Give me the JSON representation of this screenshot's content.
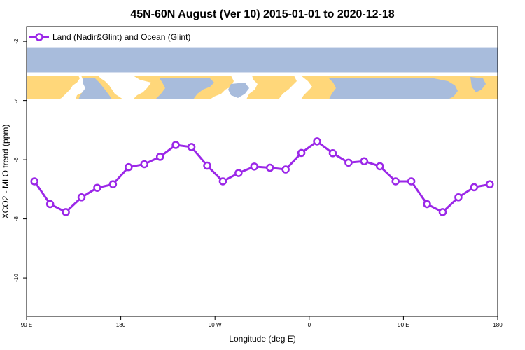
{
  "chart_data": {
    "type": "line",
    "title": "45N-60N August (Ver 10)   2015-01-01 to 2020-12-18",
    "xlabel": "Longitude (deg E)",
    "ylabel": "XCO2 - MLO trend (ppm)",
    "xlim": [
      90,
      450
    ],
    "ylim": [
      -11.3,
      -1.5
    ],
    "x_ticks": [
      {
        "value": 90,
        "label": "90 E"
      },
      {
        "value": 162,
        "label": "180"
      },
      {
        "value": 234,
        "label": "90 W"
      },
      {
        "value": 306,
        "label": "0"
      },
      {
        "value": 378,
        "label": "90 E"
      },
      {
        "value": 450,
        "label": "180"
      }
    ],
    "y_ticks": [
      {
        "value": -2,
        "label": "-2"
      },
      {
        "value": -4,
        "label": "-4"
      },
      {
        "value": -6,
        "label": "-6"
      },
      {
        "value": -8,
        "label": "-8"
      },
      {
        "value": -10,
        "label": "-10"
      }
    ],
    "legend_position": "top-left",
    "series": [
      {
        "name": "Land (Nadir&Glint) and Ocean (Glint)",
        "color": "#9b27e8",
        "x": [
          96,
          108,
          120,
          132,
          144,
          156,
          168,
          180,
          192,
          204,
          216,
          228,
          240,
          252,
          264,
          276,
          288,
          300,
          312,
          324,
          336,
          348,
          360,
          372,
          384,
          396,
          408,
          420,
          432,
          444
        ],
        "y": [
          -6.73,
          -7.5,
          -7.77,
          -7.27,
          -6.95,
          -6.83,
          -6.25,
          -6.15,
          -5.9,
          -5.5,
          -5.57,
          -6.2,
          -6.73,
          -6.45,
          -6.23,
          -6.27,
          -6.33,
          -5.77,
          -5.38,
          -5.78,
          -6.1,
          -6.05,
          -6.22,
          -6.73,
          -6.73,
          -7.5,
          -7.77,
          -7.27,
          -6.93,
          -6.83
        ]
      }
    ],
    "map_band": {
      "y_range": [
        -2.2,
        -3.05
      ],
      "land_color": "#ffd77a",
      "ocean_color": "#a8bcdc"
    }
  }
}
